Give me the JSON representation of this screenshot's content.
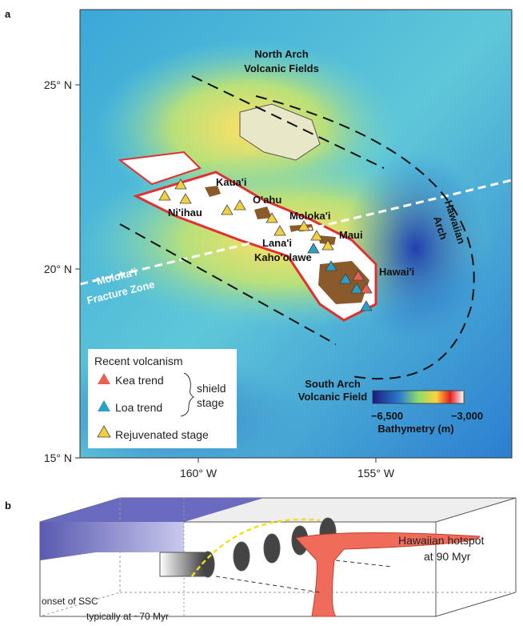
{
  "panel_a": {
    "label": "a",
    "y_ticks": [
      "25° N",
      "20° N",
      "15° N"
    ],
    "x_ticks": [
      "160° W",
      "155° W"
    ],
    "map_labels": {
      "north_arch": [
        "North Arch",
        "Volcanic Fields"
      ],
      "south_arch": [
        "South Arch",
        "Volcanic Field"
      ],
      "hawaiian_arch": [
        "Hawaiian",
        "Arch"
      ],
      "fracture_zone": [
        "Moloka'i",
        "Fracture Zone"
      ],
      "islands": [
        "Kaua'i",
        "Ni'ihau",
        "O'ahu",
        "Moloka'i",
        "Lana'i",
        "Maui",
        "Kaho'olawe",
        "Hawai'i"
      ]
    },
    "legend": {
      "title": "Recent volcanism",
      "items": [
        "Kea trend",
        "Loa trend",
        "Rejuvenated stage"
      ],
      "group": [
        "shield",
        "stage"
      ]
    },
    "colorbar": {
      "min": "−6,500",
      "max": "−3,000",
      "title": "Bathymetry (m)"
    }
  },
  "panel_b": {
    "label": "b",
    "annotations": [
      "Hawaiian hotspot",
      "at 90 Myr",
      "onset of SSC",
      "typically at ~70 Myr"
    ]
  }
}
